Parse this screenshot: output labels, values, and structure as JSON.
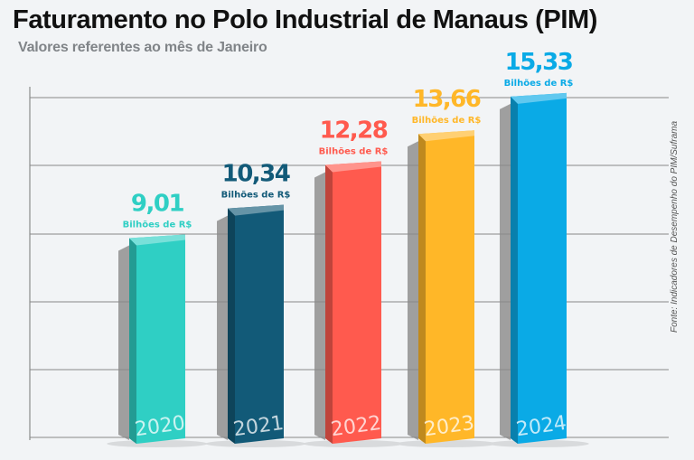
{
  "chart_data": {
    "type": "bar",
    "title": "Faturamento no Polo Industrial de Manaus (PIM)",
    "subtitle": "Valores referentes ao mês de Janeiro",
    "source": "Fonte: Indicadores de Desempenho do PIM/Suframa",
    "categories": [
      "2020",
      "2021",
      "2022",
      "2023",
      "2024"
    ],
    "values": [
      9.01,
      10.34,
      12.28,
      13.66,
      15.33
    ],
    "value_labels": [
      "9,01",
      "10,34",
      "12,28",
      "13,66",
      "15,33"
    ],
    "unit_label": "Bilhões de R$",
    "colors": [
      "#2fcfc4",
      "#125a78",
      "#ff5a4e",
      "#ffb728",
      "#0aaae6"
    ],
    "grid": true,
    "ylim": [
      0,
      15.5
    ]
  }
}
